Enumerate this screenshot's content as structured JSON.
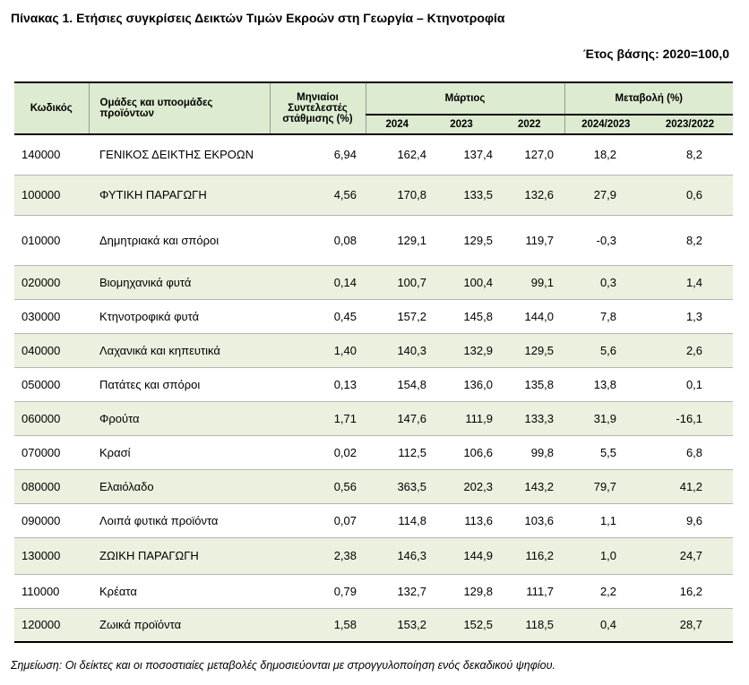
{
  "title": "Πίνακας 1. Ετήσιες συγκρίσεις Δεικτών Τιμών Εκροών στη Γεωργία – Κτηνοτροφία",
  "base_year": "Έτος βάσης: 2020=100,0",
  "headers": {
    "code": "Κωδικός",
    "groups": "Ομάδες και υποομάδες προϊόντων",
    "weights": "Μηνιαίοι Συντελεστές στάθμισης (%)",
    "march": "Μάρτιος",
    "change": "Μεταβολή (%)",
    "y2024": "2024",
    "y2023": "2023",
    "y2022": "2022",
    "ch1": "2024/2023",
    "ch2": "2023/2022"
  },
  "rows": [
    {
      "code": "140000",
      "name": "ΓΕΝΙΚΟΣ ΔΕΙΚΤΗΣ ΕΚΡΟΩΝ",
      "weight": "6,94",
      "y2024": "162,4",
      "y2023": "137,4",
      "y2022": "127,0",
      "ch1": "18,2",
      "ch2": "8,2"
    },
    {
      "code": "100000",
      "name": "ΦΥΤΙΚΗ ΠΑΡΑΓΩΓΗ",
      "weight": "4,56",
      "y2024": "170,8",
      "y2023": "133,5",
      "y2022": "132,6",
      "ch1": "27,9",
      "ch2": "0,6"
    },
    {
      "code": "010000",
      "name": "Δημητριακά και σπόροι",
      "weight": "0,08",
      "y2024": "129,1",
      "y2023": "129,5",
      "y2022": "119,7",
      "ch1": "-0,3",
      "ch2": "8,2"
    },
    {
      "code": "020000",
      "name": "Βιομηχανικά φυτά",
      "weight": "0,14",
      "y2024": "100,7",
      "y2023": "100,4",
      "y2022": "99,1",
      "ch1": "0,3",
      "ch2": "1,4"
    },
    {
      "code": "030000",
      "name": "Κτηνοτροφικά φυτά",
      "weight": "0,45",
      "y2024": "157,2",
      "y2023": "145,8",
      "y2022": "144,0",
      "ch1": "7,8",
      "ch2": "1,3"
    },
    {
      "code": "040000",
      "name": "Λαχανικά και κηπευτικά",
      "weight": "1,40",
      "y2024": "140,3",
      "y2023": "132,9",
      "y2022": "129,5",
      "ch1": "5,6",
      "ch2": "2,6"
    },
    {
      "code": "050000",
      "name": "Πατάτες και σπόροι",
      "weight": "0,13",
      "y2024": "154,8",
      "y2023": "136,0",
      "y2022": "135,8",
      "ch1": "13,8",
      "ch2": "0,1"
    },
    {
      "code": "060000",
      "name": "Φρούτα",
      "weight": "1,71",
      "y2024": "147,6",
      "y2023": "111,9",
      "y2022": "133,3",
      "ch1": "31,9",
      "ch2": "-16,1"
    },
    {
      "code": "070000",
      "name": "Κρασί",
      "weight": "0,02",
      "y2024": "112,5",
      "y2023": "106,6",
      "y2022": "99,8",
      "ch1": "5,5",
      "ch2": "6,8"
    },
    {
      "code": "080000",
      "name": "Ελαιόλαδο",
      "weight": "0,56",
      "y2024": "363,5",
      "y2023": "202,3",
      "y2022": "143,2",
      "ch1": "79,7",
      "ch2": "41,2"
    },
    {
      "code": "090000",
      "name": "Λοιπά φυτικά προϊόντα",
      "weight": "0,07",
      "y2024": "114,8",
      "y2023": "113,6",
      "y2022": "103,6",
      "ch1": "1,1",
      "ch2": "9,6"
    },
    {
      "code": "130000",
      "name": "ΖΩΙΚΗ ΠΑΡΑΓΩΓΗ",
      "weight": "2,38",
      "y2024": "146,3",
      "y2023": "144,9",
      "y2022": "116,2",
      "ch1": "1,0",
      "ch2": "24,7"
    },
    {
      "code": "110000",
      "name": "Κρέατα",
      "weight": "0,79",
      "y2024": "132,7",
      "y2023": "129,8",
      "y2022": "111,7",
      "ch1": "2,2",
      "ch2": "16,2"
    },
    {
      "code": "120000",
      "name": "Ζωικά προϊόντα",
      "weight": "1,58",
      "y2024": "153,2",
      "y2023": "152,5",
      "y2022": "118,5",
      "ch1": "0,4",
      "ch2": "28,7"
    }
  ],
  "note": "Σημείωση: Οι δείκτες και οι ποσοστιαίες μεταβολές δημοσιεύονται με στρογγυλοποίηση ενός δεκαδικού ψηφίου.",
  "colors": {
    "header_bg": "#ddebd0",
    "row_shade": "#ebf1de"
  }
}
